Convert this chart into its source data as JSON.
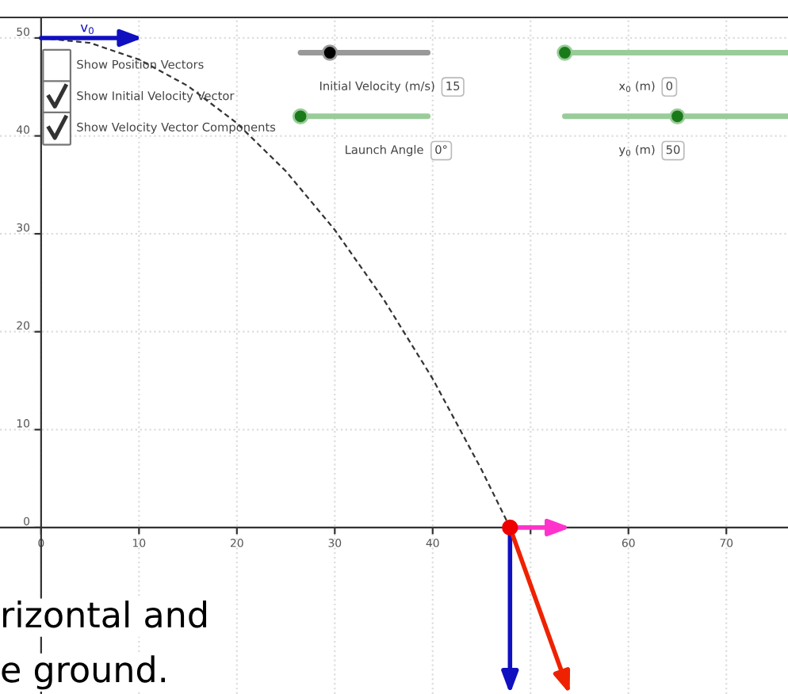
{
  "chart_data": {
    "type": "line",
    "series": [
      {
        "line_style": "dashed",
        "color": "#333333",
        "x": [
          0,
          5,
          10,
          15,
          20,
          25,
          30,
          35,
          40,
          45,
          47.9
        ],
        "values": [
          50,
          49.5,
          47.8,
          45.1,
          41.3,
          36.4,
          30.4,
          23.3,
          15.2,
          5.9,
          0
        ]
      },
      {
        "type": "scatter",
        "color": "#ee0000",
        "x": [
          47.9
        ],
        "values": [
          0
        ]
      }
    ],
    "xlim": [
      -4.2,
      76.3
    ],
    "ylim": [
      -17,
      52.1
    ],
    "xticks": [
      0,
      10,
      20,
      30,
      40,
      {
        "value": 50,
        "label": null
      },
      60,
      70
    ],
    "yticks": [
      0,
      10,
      20,
      30,
      40,
      50
    ],
    "grid": true,
    "annotations": [
      "v$_{0}$",
      "Show Position Vectors",
      "Show Initial Velocity Vector",
      "Show Velocity Vector Components",
      "Initial Velocity (m/s)",
      "15",
      "Launch Angle",
      "0°",
      "x$_{0}$ (m)",
      "0",
      "y$_{0}$ (m)",
      "50",
      "rizontal and",
      "e ground."
    ]
  }
}
